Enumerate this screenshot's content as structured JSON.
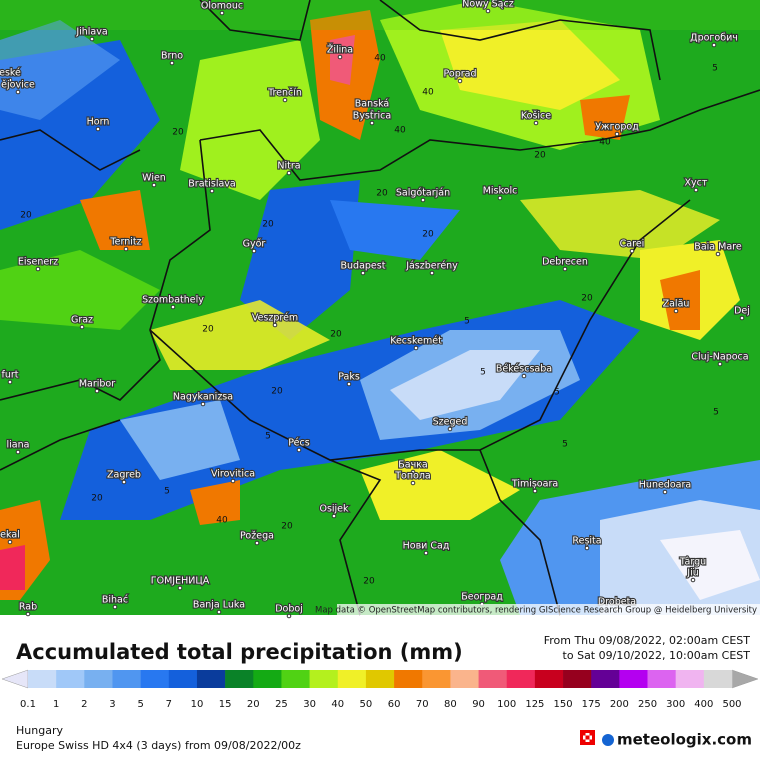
{
  "map": {
    "cities": [
      "Olomouc",
      "Nowy Sącz",
      "Дрогобич",
      "Jihlava",
      "Brno",
      "Žilina",
      "Poprad",
      "eské",
      "ějovice",
      "Trenčín",
      "Banská",
      "Bystrica",
      "Košice",
      "Ужгород",
      "Horn",
      "Nitra",
      "Salgótarján",
      "Miskolc",
      "Хуст",
      "Wien",
      "Bratislava",
      "Ternitz",
      "Győr",
      "Carei",
      "Baia Mare",
      "Eisenerz",
      "Budapest",
      "Jászberény",
      "Debrecen",
      "Szombathely",
      "Zalău",
      "Graz",
      "Veszprém",
      "Dej",
      "Kecskemét",
      "Cluj-Napoca",
      "Maribor",
      "Paks",
      "Békéscsaba",
      "Nagykanizsa",
      "furt",
      "Szeged",
      "liana",
      "Pécs",
      "Zagreb",
      "Virovitica",
      "Бачка",
      "Топола",
      "Timișoara",
      "Hunedoara",
      "Osijek",
      "ekal",
      "Požega",
      "Reșita",
      "Нови Сад",
      "Târgu",
      "Jiu",
      "ГОМЈЕНИЦА",
      "Bihać",
      "Banja Luka",
      "Doboj",
      "Београд",
      "Drobeta",
      "Rab"
    ],
    "contour_labels": [
      "40",
      "40",
      "20",
      "5",
      "40",
      "20",
      "40",
      "20",
      "20",
      "5",
      "20",
      "20",
      "5",
      "5",
      "20",
      "5",
      "20",
      "5",
      "20",
      "40",
      "20",
      "5",
      "20",
      "20",
      "5",
      "20"
    ],
    "attribution": "Map data © OpenStreetMap contributors, rendering GIScience Research Group @ Heidelberg University"
  },
  "header": {
    "title": "Accumulated total precipitation (mm)",
    "from": "From Thu 09/08/2022, 02:00am CEST",
    "to": "to Sat 09/10/2022, 10:00am CEST"
  },
  "legend": {
    "labels": [
      0.1,
      1,
      2,
      3,
      5,
      7,
      10,
      15,
      20,
      25,
      30,
      40,
      50,
      60,
      70,
      80,
      90,
      100,
      125,
      150,
      175,
      200,
      250,
      300,
      400,
      500
    ],
    "colors": [
      "#c8dcf8",
      "#a0c8f8",
      "#78b0f0",
      "#5096f0",
      "#2878f0",
      "#1460dc",
      "#0a3c9c",
      "#0a8228",
      "#14aa14",
      "#50d214",
      "#b4f01e",
      "#f0f028",
      "#e0c800",
      "#f07800",
      "#fa9632",
      "#fab48c",
      "#f05a78",
      "#f0285a",
      "#c8001e",
      "#96001e",
      "#640096",
      "#b400f0",
      "#dc64f0",
      "#f0b4f0",
      "#d8d8d8"
    ],
    "under_color": "#e6e6f8",
    "over_color": "#a8a8a8"
  },
  "footer": {
    "region": "Hungary",
    "model": "Europe Swiss HD 4x4 (3 days) from 09/08/2022/00z",
    "brand": "meteologix.com"
  }
}
